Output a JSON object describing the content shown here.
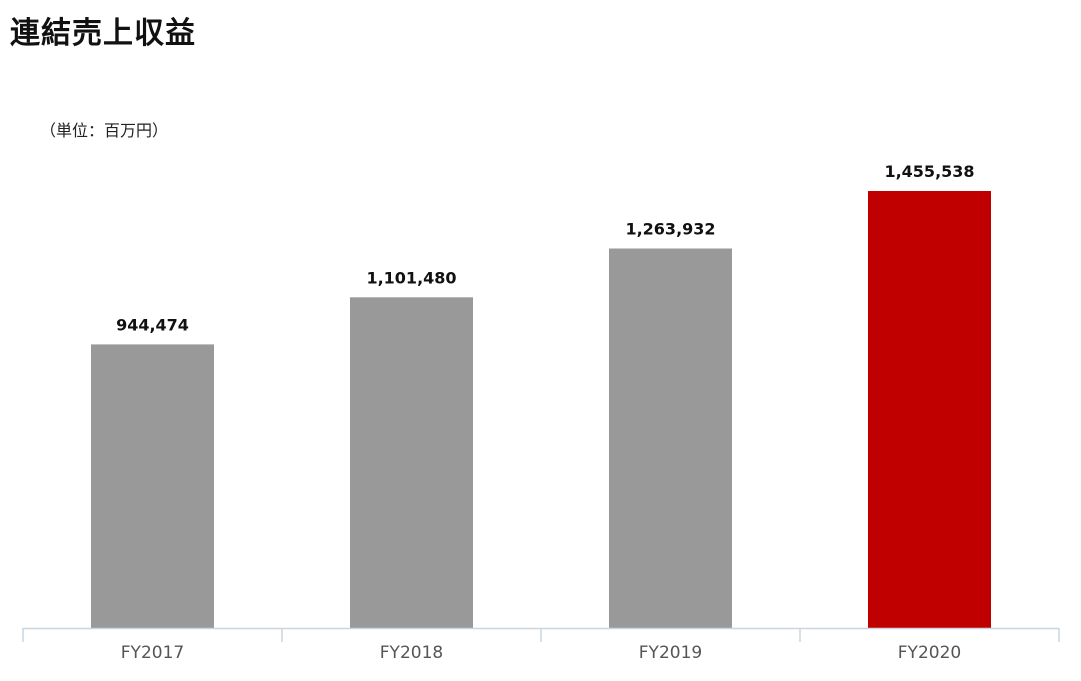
{
  "title": "連結売上収益",
  "unit_label": "（単位：百万円）",
  "chart_data": {
    "type": "bar",
    "title": "連結売上収益",
    "unit": "（単位：百万円）",
    "categories": [
      "FY2017",
      "FY2018",
      "FY2019",
      "FY2020"
    ],
    "values": [
      944474,
      1101480,
      1263932,
      1455538
    ],
    "value_labels": [
      "944,474",
      "1,101,480",
      "1,263,932",
      "1,455,538"
    ],
    "bar_colors": [
      "#999999",
      "#999999",
      "#999999",
      "#c00000"
    ],
    "axis_color": "#c9d5e0",
    "ylim": [
      0,
      1600000
    ],
    "grid": false,
    "legend": "none"
  }
}
